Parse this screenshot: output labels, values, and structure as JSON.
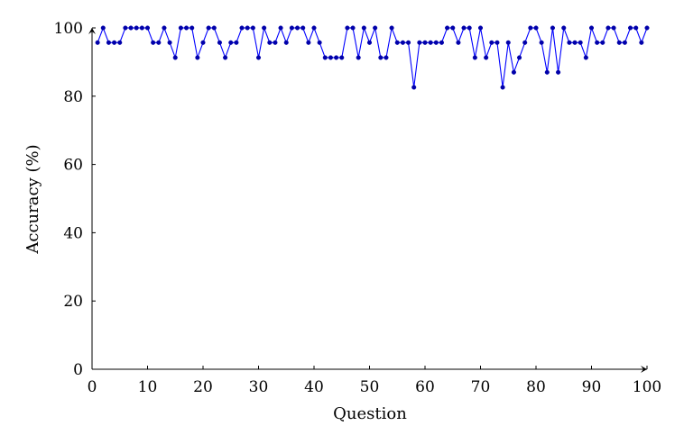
{
  "chart_data": {
    "type": "line",
    "title": "",
    "xlabel": "Question",
    "ylabel": "Accuracy (%)",
    "xlim": [
      0,
      100
    ],
    "ylim": [
      0,
      100
    ],
    "x_ticks": [
      0,
      10,
      20,
      30,
      40,
      50,
      60,
      70,
      80,
      90,
      100
    ],
    "y_ticks": [
      0,
      20,
      40,
      60,
      80,
      100
    ],
    "grid": false,
    "legend": "none",
    "line_color": "#0000ff",
    "marker_color": "#0000aa",
    "series": [
      {
        "x": [
          1,
          2,
          3,
          4,
          5,
          6,
          7,
          8,
          9,
          10,
          11,
          12,
          13,
          14,
          15,
          16,
          17,
          18,
          19,
          20,
          21,
          22,
          23,
          24,
          25,
          26,
          27,
          28,
          29,
          30,
          31,
          32,
          33,
          34,
          35,
          36,
          37,
          38,
          39,
          40,
          41,
          42,
          43,
          44,
          45,
          46,
          47,
          48,
          49,
          50,
          51,
          52,
          53,
          54,
          55,
          56,
          57,
          58,
          59,
          60,
          61,
          62,
          63,
          64,
          65,
          66,
          67,
          68,
          69,
          70,
          71,
          72,
          73,
          74,
          75,
          76,
          77,
          78,
          79,
          80,
          81,
          82,
          83,
          84,
          85,
          86,
          87,
          88,
          89,
          90,
          91,
          92,
          93,
          94,
          95,
          96,
          97,
          98,
          99,
          100
        ],
        "y": [
          95.7,
          100,
          95.7,
          95.7,
          95.7,
          100,
          100,
          100,
          100,
          100,
          95.7,
          95.7,
          100,
          95.7,
          91.3,
          100,
          100,
          100,
          91.3,
          95.7,
          100,
          100,
          95.7,
          91.3,
          95.7,
          95.7,
          100,
          100,
          100,
          91.3,
          100,
          95.7,
          95.7,
          100,
          95.7,
          100,
          100,
          100,
          95.7,
          100,
          95.7,
          91.3,
          91.3,
          91.3,
          91.3,
          100,
          100,
          91.3,
          100,
          95.7,
          100,
          91.3,
          91.3,
          100,
          95.7,
          95.7,
          95.7,
          82.6,
          95.7,
          95.7,
          95.7,
          95.7,
          95.7,
          100,
          100,
          95.7,
          100,
          100,
          91.3,
          100,
          91.3,
          95.7,
          95.7,
          82.6,
          95.7,
          87,
          91.3,
          95.7,
          100,
          100,
          95.7,
          87,
          100,
          87,
          100,
          95.7,
          95.7,
          95.7,
          91.3,
          100,
          95.7,
          95.7,
          100,
          100,
          95.7,
          95.7,
          100,
          100,
          95.7,
          100
        ]
      }
    ]
  }
}
